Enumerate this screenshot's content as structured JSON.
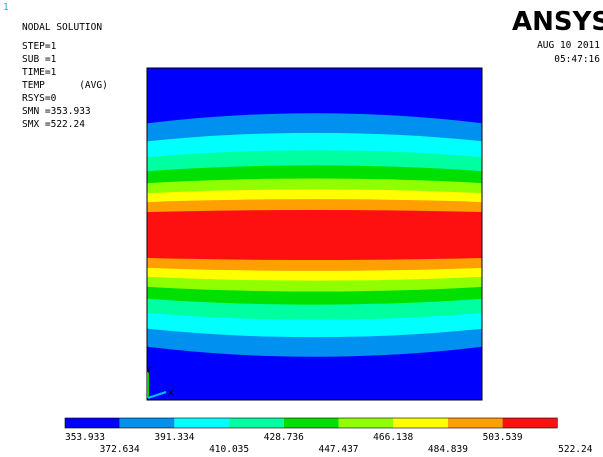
{
  "plot_number": "1",
  "header": {
    "title": "NODAL SOLUTION",
    "lines": [
      "STEP=1",
      "SUB =1",
      "TIME=1",
      "TEMP      (AVG)",
      "RSYS=0",
      "SMN =353.933",
      "SMX =522.24"
    ]
  },
  "logo": "ANSYS",
  "date": "AUG 10 2011",
  "time": "05:47:16",
  "axis": {
    "y": "Y",
    "x": "X"
  },
  "legend": {
    "colors": [
      "#0000ff",
      "#0090f0",
      "#00ffff",
      "#00ffa0",
      "#00e000",
      "#90ff00",
      "#ffff00",
      "#ffa000",
      "#ff1010"
    ],
    "labels": [
      "353.933",
      "372.634",
      "391.334",
      "410.035",
      "428.736",
      "447.437",
      "466.138",
      "484.839",
      "503.539",
      "522.24"
    ]
  }
}
